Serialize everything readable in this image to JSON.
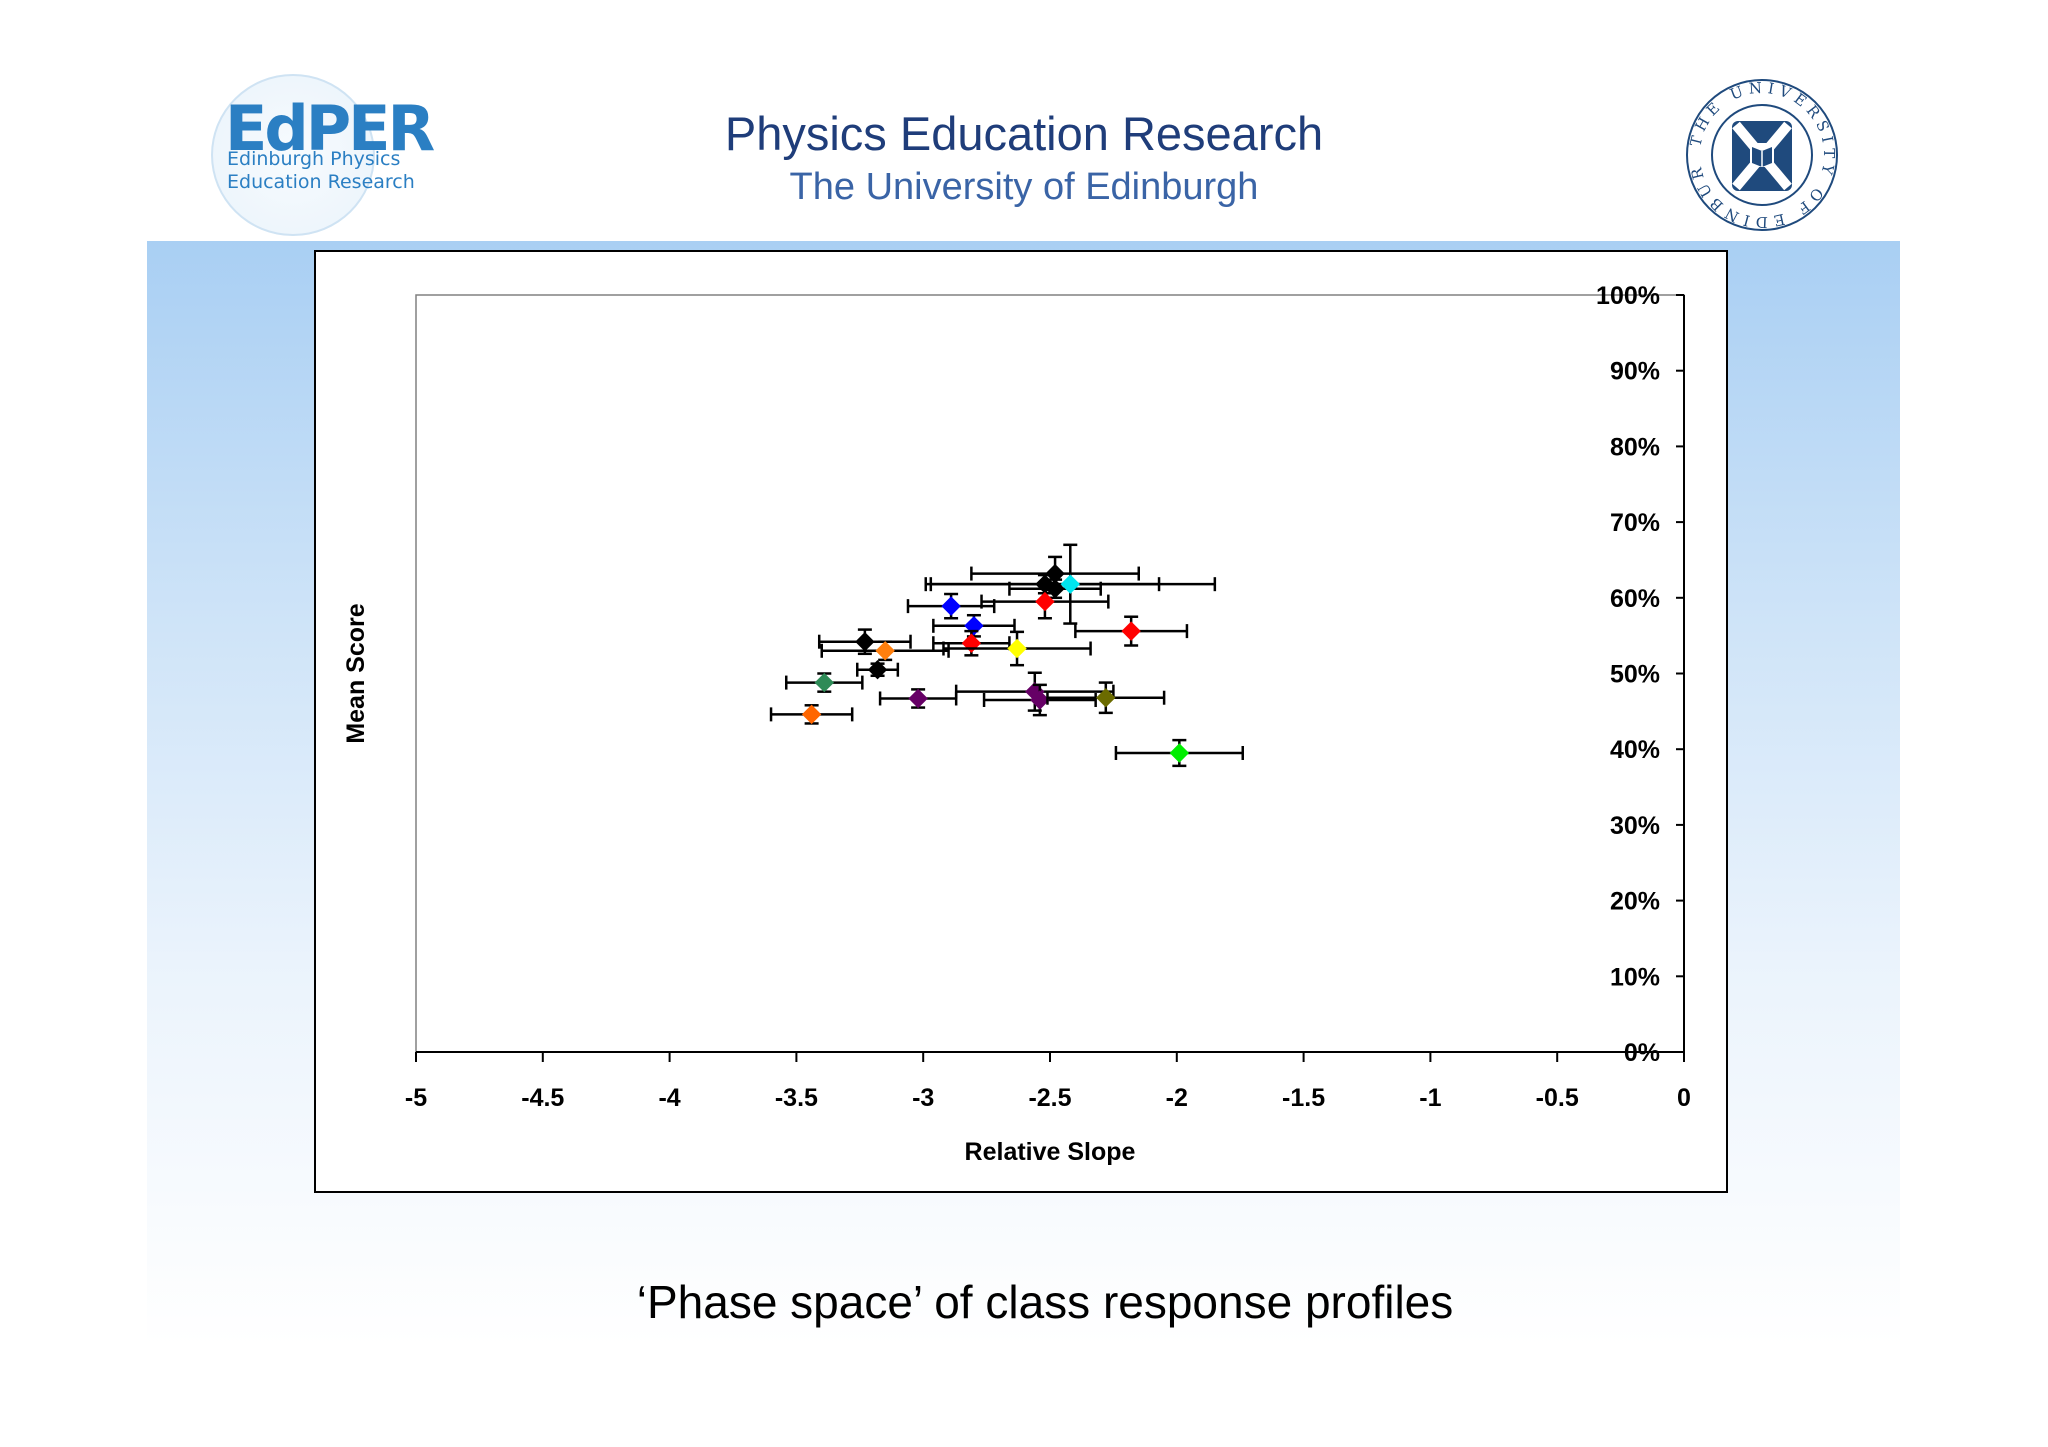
{
  "header": {
    "title": "Physics Education Research",
    "subtitle": "The University of Edinburgh"
  },
  "logo": {
    "name": "EdPER",
    "line1": "Edinburgh Physics",
    "line2": "Education Research"
  },
  "crest": {
    "text": "THE UNIVERSITY OF EDINBURGH"
  },
  "caption": "‘Phase space’ of class response profiles",
  "chart_data": {
    "type": "scatter",
    "xlabel": "Relative Slope",
    "ylabel": "Mean Score",
    "xlim": [
      -5,
      0
    ],
    "ylim": [
      0,
      1
    ],
    "xticks": [
      "-5",
      "-4.5",
      "-4",
      "-3.5",
      "-3",
      "-2.5",
      "-2",
      "-1.5",
      "-1",
      "-0.5",
      "0"
    ],
    "yticks": [
      "0%",
      "10%",
      "20%",
      "30%",
      "40%",
      "50%",
      "60%",
      "70%",
      "80%",
      "90%",
      "100%"
    ],
    "y_axis_position": "right",
    "grid": false,
    "marker": "diamond",
    "points": [
      {
        "x": -2.48,
        "y": 0.632,
        "xerr": 0.33,
        "yerr": 0.022,
        "color": "#000000"
      },
      {
        "x": -2.52,
        "y": 0.618,
        "xerr": 0.45,
        "yerr": 0.012,
        "color": "#000000"
      },
      {
        "x": -2.48,
        "y": 0.612,
        "xerr": 0.18,
        "yerr": 0.012,
        "color": "#000000"
      },
      {
        "x": -2.42,
        "y": 0.618,
        "xerr": 0.57,
        "yerr": 0.052,
        "color": "#00e5ee"
      },
      {
        "x": -2.52,
        "y": 0.595,
        "xerr": 0.25,
        "yerr": 0.022,
        "color": "#ff0000"
      },
      {
        "x": -2.89,
        "y": 0.589,
        "xerr": 0.17,
        "yerr": 0.016,
        "color": "#0000ff"
      },
      {
        "x": -2.8,
        "y": 0.563,
        "xerr": 0.16,
        "yerr": 0.014,
        "color": "#0000ff"
      },
      {
        "x": -2.18,
        "y": 0.556,
        "xerr": 0.22,
        "yerr": 0.019,
        "color": "#ff0000"
      },
      {
        "x": -3.23,
        "y": 0.542,
        "xerr": 0.18,
        "yerr": 0.016,
        "color": "#000000"
      },
      {
        "x": -2.81,
        "y": 0.54,
        "xerr": 0.15,
        "yerr": 0.016,
        "color": "#ff0000"
      },
      {
        "x": -2.63,
        "y": 0.533,
        "xerr": 0.29,
        "yerr": 0.022,
        "color": "#ffff00"
      },
      {
        "x": -3.15,
        "y": 0.53,
        "xerr": 0.25,
        "yerr": 0.012,
        "color": "#ff7f0e"
      },
      {
        "x": -3.18,
        "y": 0.505,
        "xerr": 0.08,
        "yerr": 0.008,
        "color": "#000000"
      },
      {
        "x": -3.39,
        "y": 0.488,
        "xerr": 0.15,
        "yerr": 0.012,
        "color": "#2e8b57"
      },
      {
        "x": -2.56,
        "y": 0.476,
        "xerr": 0.31,
        "yerr": 0.025,
        "color": "#660066"
      },
      {
        "x": -2.54,
        "y": 0.465,
        "xerr": 0.22,
        "yerr": 0.02,
        "color": "#660066"
      },
      {
        "x": -3.02,
        "y": 0.467,
        "xerr": 0.15,
        "yerr": 0.012,
        "color": "#660066"
      },
      {
        "x": -2.28,
        "y": 0.468,
        "xerr": 0.23,
        "yerr": 0.02,
        "color": "#6b6b00"
      },
      {
        "x": -3.44,
        "y": 0.446,
        "xerr": 0.16,
        "yerr": 0.012,
        "color": "#ff6600"
      },
      {
        "x": -1.99,
        "y": 0.395,
        "xerr": 0.25,
        "yerr": 0.017,
        "color": "#00ee00"
      }
    ]
  }
}
